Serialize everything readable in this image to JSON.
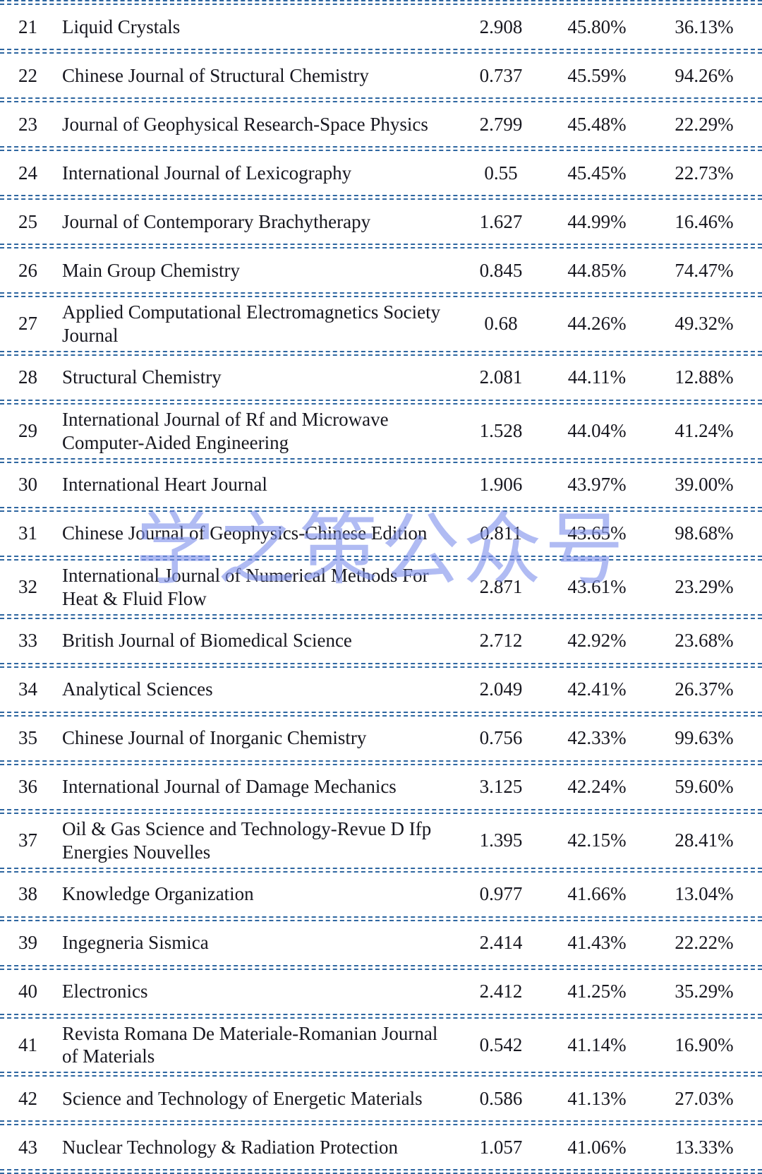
{
  "watermark": {
    "text": "学之策公众号",
    "color": "#8193ec"
  },
  "table": {
    "rows": [
      {
        "rank": "21",
        "journal": "Liquid Crystals",
        "value": "2.908",
        "percent1": "45.80%",
        "percent2": "36.13%"
      },
      {
        "rank": "22",
        "journal": "Chinese Journal of Structural Chemistry",
        "value": "0.737",
        "percent1": "45.59%",
        "percent2": "94.26%"
      },
      {
        "rank": "23",
        "journal": "Journal of Geophysical Research-Space Physics",
        "value": "2.799",
        "percent1": "45.48%",
        "percent2": "22.29%"
      },
      {
        "rank": "24",
        "journal": "International Journal of Lexicography",
        "value": "0.55",
        "percent1": "45.45%",
        "percent2": "22.73%"
      },
      {
        "rank": "25",
        "journal": "Journal of Contemporary Brachytherapy",
        "value": "1.627",
        "percent1": "44.99%",
        "percent2": "16.46%"
      },
      {
        "rank": "26",
        "journal": "Main Group Chemistry",
        "value": "0.845",
        "percent1": "44.85%",
        "percent2": "74.47%"
      },
      {
        "rank": "27",
        "journal": "Applied Computational Electromagnetics Society Journal",
        "value": "0.68",
        "percent1": "44.26%",
        "percent2": "49.32%"
      },
      {
        "rank": "28",
        "journal": "Structural Chemistry",
        "value": "2.081",
        "percent1": "44.11%",
        "percent2": "12.88%"
      },
      {
        "rank": "29",
        "journal": "International Journal of Rf and Microwave Computer-Aided Engineering",
        "value": "1.528",
        "percent1": "44.04%",
        "percent2": "41.24%"
      },
      {
        "rank": "30",
        "journal": "International Heart Journal",
        "value": "1.906",
        "percent1": "43.97%",
        "percent2": "39.00%"
      },
      {
        "rank": "31",
        "journal": "Chinese Journal of Geophysics-Chinese Edition",
        "value": "0.811",
        "percent1": "43.65%",
        "percent2": "98.68%"
      },
      {
        "rank": "32",
        "journal": "International Journal of Numerical Methods For Heat & Fluid Flow",
        "value": "2.871",
        "percent1": "43.61%",
        "percent2": "23.29%"
      },
      {
        "rank": "33",
        "journal": "British Journal of Biomedical Science",
        "value": "2.712",
        "percent1": "42.92%",
        "percent2": "23.68%"
      },
      {
        "rank": "34",
        "journal": "Analytical Sciences",
        "value": "2.049",
        "percent1": "42.41%",
        "percent2": "26.37%"
      },
      {
        "rank": "35",
        "journal": "Chinese Journal of Inorganic Chemistry",
        "value": "0.756",
        "percent1": "42.33%",
        "percent2": "99.63%"
      },
      {
        "rank": "36",
        "journal": "International Journal of Damage Mechanics",
        "value": "3.125",
        "percent1": "42.24%",
        "percent2": "59.60%"
      },
      {
        "rank": "37",
        "journal": "Oil & Gas Science and Technology-Revue D Ifp Energies Nouvelles",
        "value": "1.395",
        "percent1": "42.15%",
        "percent2": "28.41%"
      },
      {
        "rank": "38",
        "journal": "Knowledge Organization",
        "value": "0.977",
        "percent1": "41.66%",
        "percent2": "13.04%"
      },
      {
        "rank": "39",
        "journal": "Ingegneria Sismica",
        "value": "2.414",
        "percent1": "41.43%",
        "percent2": "22.22%"
      },
      {
        "rank": "40",
        "journal": "Electronics",
        "value": "2.412",
        "percent1": "41.25%",
        "percent2": "35.29%"
      },
      {
        "rank": "41",
        "journal": "Revista Romana De Materiale-Romanian Journal of Materials",
        "value": "0.542",
        "percent1": "41.14%",
        "percent2": "16.90%"
      },
      {
        "rank": "42",
        "journal": "Science and Technology of Energetic Materials",
        "value": "0.586",
        "percent1": "41.13%",
        "percent2": "27.03%"
      },
      {
        "rank": "43",
        "journal": "Nuclear Technology & Radiation Protection",
        "value": "1.057",
        "percent1": "41.06%",
        "percent2": "13.33%"
      }
    ]
  }
}
